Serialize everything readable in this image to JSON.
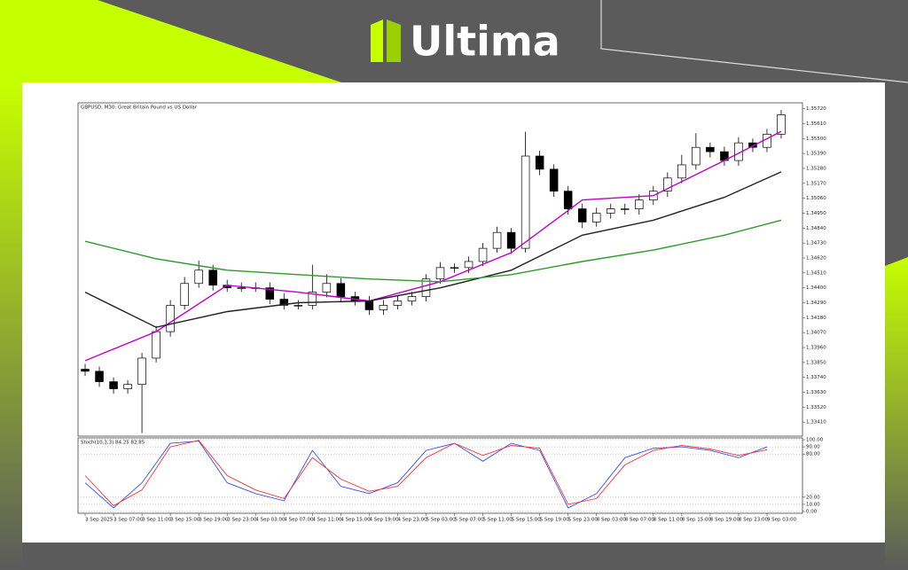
{
  "brand": "Ultima",
  "chart_data": [
    {
      "type": "candlestick",
      "title": "GBPUSD, M30: Great Britain Pound vs US Dollar",
      "xlim": [
        -0.5,
        50.5
      ],
      "ylim": [
        1.3332,
        1.3575
      ],
      "yticks": [
        {
          "value": 1.3572,
          "label": "1.35720"
        },
        {
          "value": 1.3561,
          "label": "1.35610"
        },
        {
          "value": 1.355,
          "label": "1.35500"
        },
        {
          "value": 1.3539,
          "label": "1.35390"
        },
        {
          "value": 1.3528,
          "label": "1.35280"
        },
        {
          "value": 1.3517,
          "label": "1.35170"
        },
        {
          "value": 1.3506,
          "label": "1.35060"
        },
        {
          "value": 1.3495,
          "label": "1.34950"
        },
        {
          "value": 1.3484,
          "label": "1.34840"
        },
        {
          "value": 1.3473,
          "label": "1.34730"
        },
        {
          "value": 1.3462,
          "label": "1.34620"
        },
        {
          "value": 1.3451,
          "label": "1.34510"
        },
        {
          "value": 1.344,
          "label": "1.34400"
        },
        {
          "value": 1.3429,
          "label": "1.34290"
        },
        {
          "value": 1.3418,
          "label": "1.34180"
        },
        {
          "value": 1.3407,
          "label": "1.34070"
        },
        {
          "value": 1.3396,
          "label": "1.33960"
        },
        {
          "value": 1.3385,
          "label": "1.33850"
        },
        {
          "value": 1.3374,
          "label": "1.33740"
        },
        {
          "value": 1.3363,
          "label": "1.33630"
        },
        {
          "value": 1.3352,
          "label": "1.33520"
        },
        {
          "value": 1.3341,
          "label": "1.33410"
        }
      ],
      "up_color": "#ffffff",
      "down_color": "#000000",
      "open": [
        1.338,
        1.33785,
        1.33708,
        1.33656,
        1.33688,
        1.33882,
        1.34077,
        1.34271,
        1.34432,
        1.3453,
        1.34419,
        1.344,
        1.344,
        1.344,
        1.34316,
        1.34271,
        1.34271,
        1.34368,
        1.34432,
        1.34335,
        1.34303,
        1.34238,
        1.34271,
        1.34303,
        1.34335,
        1.34465,
        1.34549,
        1.34549,
        1.34594,
        1.34691,
        1.34808,
        1.34691,
        1.35371,
        1.35274,
        1.35112,
        1.34982,
        1.34885,
        1.3495,
        1.34982,
        1.34982,
        1.35047,
        1.35112,
        1.35209,
        1.35306,
        1.35435,
        1.35403,
        1.35338,
        1.35468,
        1.35435,
        1.35532
      ],
      "high": [
        1.3384,
        1.3382,
        1.3374,
        1.3372,
        1.3392,
        1.3412,
        1.3431,
        1.3448,
        1.346,
        1.3457,
        1.3446,
        1.3444,
        1.3444,
        1.3444,
        1.3436,
        1.3431,
        1.3457,
        1.345,
        1.3447,
        1.3437,
        1.3434,
        1.3431,
        1.3434,
        1.3437,
        1.345,
        1.3459,
        1.3458,
        1.3463,
        1.3473,
        1.3485,
        1.3484,
        1.3555,
        1.3541,
        1.3531,
        1.3515,
        1.3502,
        1.3499,
        1.3502,
        1.3502,
        1.3509,
        1.3515,
        1.3525,
        1.3538,
        1.3554,
        1.3547,
        1.3544,
        1.3551,
        1.355,
        1.3557,
        1.3571
      ],
      "low": [
        1.3375,
        1.3367,
        1.3362,
        1.3362,
        1.3333,
        1.3385,
        1.3404,
        1.3424,
        1.344,
        1.3438,
        1.3437,
        1.3437,
        1.3437,
        1.3428,
        1.3424,
        1.3424,
        1.3424,
        1.3433,
        1.343,
        1.3427,
        1.342,
        1.342,
        1.3424,
        1.3427,
        1.343,
        1.3443,
        1.3451,
        1.3451,
        1.3456,
        1.3466,
        1.3465,
        1.3466,
        1.3523,
        1.3507,
        1.3494,
        1.3484,
        1.3485,
        1.3491,
        1.3494,
        1.3494,
        1.3501,
        1.3507,
        1.3517,
        1.3527,
        1.3536,
        1.353,
        1.353,
        1.354,
        1.354,
        1.355
      ],
      "close": [
        1.33785,
        1.33708,
        1.33656,
        1.33688,
        1.33882,
        1.34077,
        1.34271,
        1.34432,
        1.3453,
        1.34419,
        1.344,
        1.344,
        1.344,
        1.34316,
        1.34271,
        1.34271,
        1.34368,
        1.34432,
        1.34335,
        1.34303,
        1.34238,
        1.34271,
        1.34303,
        1.34335,
        1.34465,
        1.34549,
        1.34549,
        1.34594,
        1.34691,
        1.34808,
        1.34691,
        1.35371,
        1.35274,
        1.35112,
        1.34982,
        1.34885,
        1.3495,
        1.34982,
        1.34982,
        1.35047,
        1.35112,
        1.35209,
        1.35306,
        1.35435,
        1.35403,
        1.35338,
        1.35468,
        1.35435,
        1.35532,
        1.35675
      ],
      "series": [
        {
          "color": "#c000c8",
          "x": [
            0,
            5,
            10,
            15,
            20,
            25,
            30,
            35,
            40,
            45,
            49
          ],
          "values": [
            1.33863,
            1.34077,
            1.34419,
            1.34368,
            1.34303,
            1.34445,
            1.34659,
            1.35047,
            1.35079,
            1.35338,
            1.35552
          ]
        },
        {
          "color": "#222222",
          "x": [
            0,
            5,
            10,
            15,
            20,
            25,
            30,
            35,
            40,
            45,
            49
          ],
          "values": [
            1.34368,
            1.34109,
            1.34225,
            1.3429,
            1.34303,
            1.344,
            1.3453,
            1.34788,
            1.34898,
            1.35067,
            1.35254
          ]
        },
        {
          "color": "#2e9a2e",
          "x": [
            0,
            5,
            10,
            15,
            20,
            25,
            30,
            35,
            40,
            45,
            49
          ],
          "values": [
            1.34743,
            1.34614,
            1.3453,
            1.34497,
            1.34465,
            1.34445,
            1.34497,
            1.34594,
            1.34678,
            1.34788,
            1.34898
          ]
        }
      ]
    },
    {
      "type": "line",
      "title": "Stoch(10,3,3) 84.25 82.85",
      "xlim": [
        -0.5,
        50.5
      ],
      "ylim": [
        0,
        100
      ],
      "yticks": [
        {
          "value": 100,
          "label": "100.00"
        },
        {
          "value": 90,
          "label": "90.00"
        },
        {
          "value": 80,
          "label": "80.00"
        },
        {
          "value": 20,
          "label": "20.00"
        },
        {
          "value": 10,
          "label": "10.00"
        },
        {
          "value": 0,
          "label": "0.00"
        }
      ],
      "grid": true,
      "xticks": [
        {
          "value": 0,
          "label": "3 Sep 2025"
        },
        {
          "value": 2,
          "label": "3 Sep 07:00"
        },
        {
          "value": 4,
          "label": "3 Sep 11:00"
        },
        {
          "value": 6,
          "label": "3 Sep 15:00"
        },
        {
          "value": 8,
          "label": "3 Sep 19:00"
        },
        {
          "value": 10,
          "label": "3 Sep 23:00"
        },
        {
          "value": 12,
          "label": "4 Sep 03:00"
        },
        {
          "value": 14,
          "label": "4 Sep 07:00"
        },
        {
          "value": 16,
          "label": "4 Sep 11:00"
        },
        {
          "value": 18,
          "label": "4 Sep 15:00"
        },
        {
          "value": 20,
          "label": "4 Sep 19:00"
        },
        {
          "value": 22,
          "label": "4 Sep 23:00"
        },
        {
          "value": 24,
          "label": "5 Sep 03:00"
        },
        {
          "value": 26,
          "label": "5 Sep 07:00"
        },
        {
          "value": 28,
          "label": "5 Sep 11:00"
        },
        {
          "value": 30,
          "label": "5 Sep 15:00"
        },
        {
          "value": 32,
          "label": "5 Sep 19:00"
        },
        {
          "value": 34,
          "label": "5 Sep 23:00"
        },
        {
          "value": 36,
          "label": "8 Sep 03:00"
        },
        {
          "value": 38,
          "label": "8 Sep 07:00"
        },
        {
          "value": 40,
          "label": "8 Sep 11:00"
        },
        {
          "value": 42,
          "label": "8 Sep 15:00"
        },
        {
          "value": 44,
          "label": "8 Sep 19:00"
        },
        {
          "value": 46,
          "label": "8 Sep 23:00"
        },
        {
          "value": 48,
          "label": "9 Sep 03:00"
        }
      ],
      "series": [
        {
          "color": "#3050ff",
          "x": [
            0,
            2,
            4,
            6,
            8,
            10,
            12,
            14,
            16,
            18,
            20,
            22,
            24,
            26,
            28,
            30,
            32,
            34,
            36,
            38,
            40,
            42,
            44,
            46,
            48
          ],
          "values": [
            40,
            5,
            40,
            95,
            98,
            40,
            25,
            15,
            85,
            35,
            25,
            40,
            85,
            95,
            70,
            95,
            85,
            5,
            25,
            75,
            88,
            90,
            85,
            75,
            90
          ]
        },
        {
          "color": "#ff3030",
          "x": [
            0,
            2,
            4,
            6,
            8,
            10,
            12,
            14,
            16,
            18,
            20,
            22,
            24,
            26,
            28,
            30,
            32,
            34,
            36,
            38,
            40,
            42,
            44,
            46,
            48
          ],
          "values": [
            50,
            8,
            30,
            90,
            99,
            50,
            30,
            18,
            75,
            45,
            28,
            35,
            75,
            95,
            78,
            92,
            88,
            10,
            18,
            65,
            85,
            92,
            87,
            78,
            86
          ]
        }
      ]
    }
  ]
}
